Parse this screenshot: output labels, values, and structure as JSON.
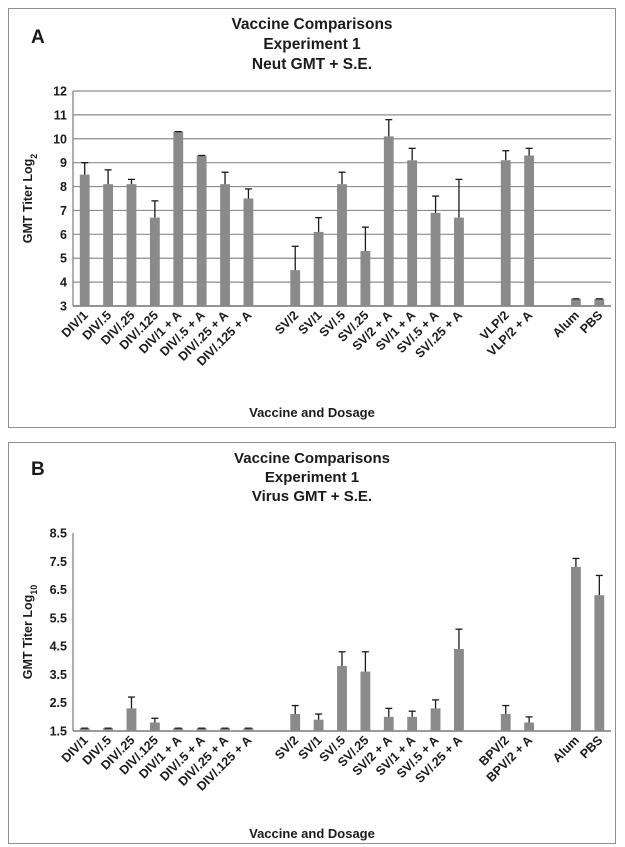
{
  "chart_data": [
    {
      "type": "bar",
      "panel_label": "A",
      "title_lines": [
        "Vaccine Comparisons",
        "Experiment 1",
        "Neut GMT + S.E."
      ],
      "ylabel": "GMT Titer Log",
      "ylabel_subscript": "2",
      "xlabel": "Vaccine and Dosage",
      "ylim": [
        3,
        12
      ],
      "yticks": [
        "3",
        "4",
        "5",
        "6",
        "7",
        "8",
        "9",
        "10",
        "11",
        "12"
      ],
      "grid": true,
      "bar_color": "#8a8a8a",
      "categories": [
        "DIV/1",
        "DIV/.5",
        "DIV/.25",
        "DIV/.125",
        "DIV/1 + A",
        "DIV/.5 + A",
        "DIV/.25 + A",
        "DIV/.125 + A",
        "",
        "SV/2",
        "SV/1",
        "SV/.5",
        "SV/.25",
        "SV/2 + A",
        "SV/1 + A",
        "SV/.5 + A",
        "SV/.25 + A",
        "",
        "VLP/2",
        "VLP/2 + A",
        "",
        "Alum",
        "PBS"
      ],
      "values": [
        8.5,
        8.1,
        8.1,
        6.7,
        10.3,
        9.3,
        8.1,
        7.5,
        null,
        4.5,
        6.1,
        8.1,
        5.3,
        10.1,
        9.1,
        6.9,
        6.7,
        null,
        9.1,
        9.3,
        null,
        3.3,
        3.3
      ],
      "errors": [
        0.5,
        0.6,
        0.2,
        0.7,
        0.0,
        0.0,
        0.5,
        0.4,
        null,
        1.0,
        0.6,
        0.5,
        1.0,
        0.7,
        0.5,
        0.7,
        1.6,
        null,
        0.4,
        0.3,
        null,
        0.0,
        0.0
      ]
    },
    {
      "type": "bar",
      "panel_label": "B",
      "title_lines": [
        "Vaccine Comparisons",
        "Experiment 1",
        "Virus GMT + S.E."
      ],
      "ylabel": "GMT Titer Log",
      "ylabel_subscript": "10",
      "xlabel": "Vaccine and Dosage",
      "ylim": [
        1.5,
        8.5
      ],
      "yticks": [
        "1.5",
        "2.5",
        "3.5",
        "4.5",
        "5.5",
        "6.5",
        "7.5",
        "8.5"
      ],
      "grid": false,
      "bar_color": "#8a8a8a",
      "categories": [
        "DIV/1",
        "DIV/.5",
        "DIV/.25",
        "DIV/.125",
        "DIV/1 + A",
        "DIV/.5 + A",
        "DIV/.25 + A",
        "DIV/.125 + A",
        "",
        "SV/2",
        "SV/1",
        "SV/.5",
        "SV/.25",
        "SV/2 + A",
        "SV/1 + A",
        "SV/.5 + A",
        "SV/.25 + A",
        "",
        "BPV/2",
        "BPV/2 + A",
        "",
        "Alum",
        "PBS"
      ],
      "values": [
        1.6,
        1.6,
        2.3,
        1.8,
        1.6,
        1.6,
        1.6,
        1.6,
        null,
        2.1,
        1.9,
        3.8,
        3.6,
        2.0,
        2.0,
        2.3,
        4.4,
        null,
        2.1,
        1.8,
        null,
        7.3,
        6.3
      ],
      "errors": [
        0.0,
        0.0,
        0.4,
        0.15,
        0.0,
        0.0,
        0.0,
        0.0,
        null,
        0.3,
        0.2,
        0.5,
        0.7,
        0.3,
        0.2,
        0.3,
        0.7,
        null,
        0.3,
        0.2,
        null,
        0.3,
        0.7
      ]
    }
  ]
}
